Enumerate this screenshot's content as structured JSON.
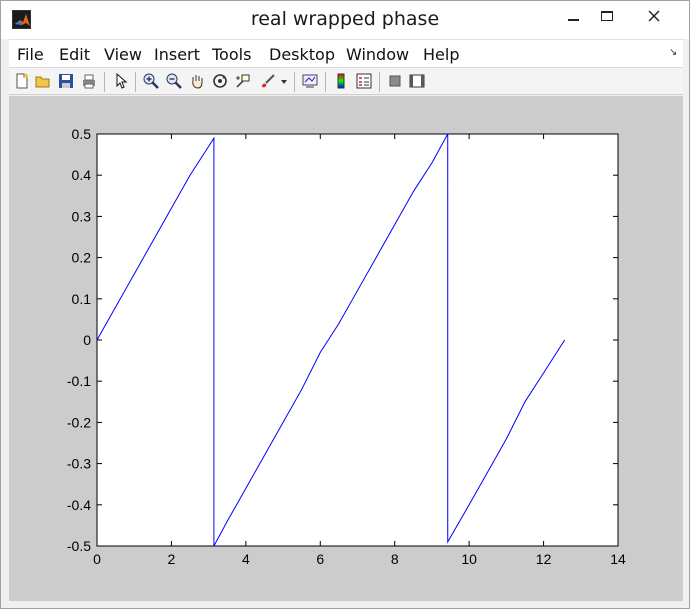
{
  "window": {
    "title": "real wrapped phase"
  },
  "menu": {
    "items": [
      "File",
      "Edit",
      "View",
      "Insert",
      "Tools",
      "Desktop",
      "Window",
      "Help"
    ]
  },
  "toolbar": {
    "icons": [
      "new-figure-icon",
      "open-file-icon",
      "save-icon",
      "print-icon",
      "pointer-icon",
      "zoom-in-icon",
      "zoom-out-icon",
      "pan-icon",
      "rotate-icon",
      "data-cursor-icon",
      "brush-icon",
      "link-plot-icon",
      "colorbar-icon",
      "legend-icon",
      "hide-plot-tools-icon",
      "show-plot-tools-icon"
    ]
  },
  "chart_data": {
    "type": "line",
    "title": "",
    "xlabel": "",
    "ylabel": "",
    "xlim": [
      0,
      14
    ],
    "ylim": [
      -0.5,
      0.5
    ],
    "xticks": [
      "0",
      "2",
      "4",
      "6",
      "8",
      "10",
      "12",
      "14"
    ],
    "yticks": [
      "-0.5",
      "-0.4",
      "-0.3",
      "-0.2",
      "-0.1",
      "0",
      "0.1",
      "0.2",
      "0.3",
      "0.4",
      "0.5"
    ],
    "grid": false,
    "series": [
      {
        "color": "#0000ff",
        "x": [
          0,
          0.5,
          1.0,
          1.5,
          2.0,
          2.5,
          3.0,
          3.1416,
          3.1416,
          3.5,
          4.0,
          4.5,
          5.0,
          5.5,
          6.0,
          6.5,
          7.0,
          7.5,
          8.0,
          8.5,
          9.0,
          9.4248,
          9.4248,
          10.0,
          10.5,
          11.0,
          11.5,
          12.0,
          12.5664
        ],
        "y": [
          0,
          0.08,
          0.16,
          0.24,
          0.32,
          0.4,
          0.47,
          0.49,
          -0.5,
          -0.44,
          -0.36,
          -0.28,
          -0.2,
          -0.12,
          -0.03,
          0.04,
          0.12,
          0.2,
          0.28,
          0.36,
          0.43,
          0.5,
          -0.49,
          -0.4,
          -0.32,
          -0.24,
          -0.15,
          -0.08,
          0
        ]
      }
    ]
  }
}
